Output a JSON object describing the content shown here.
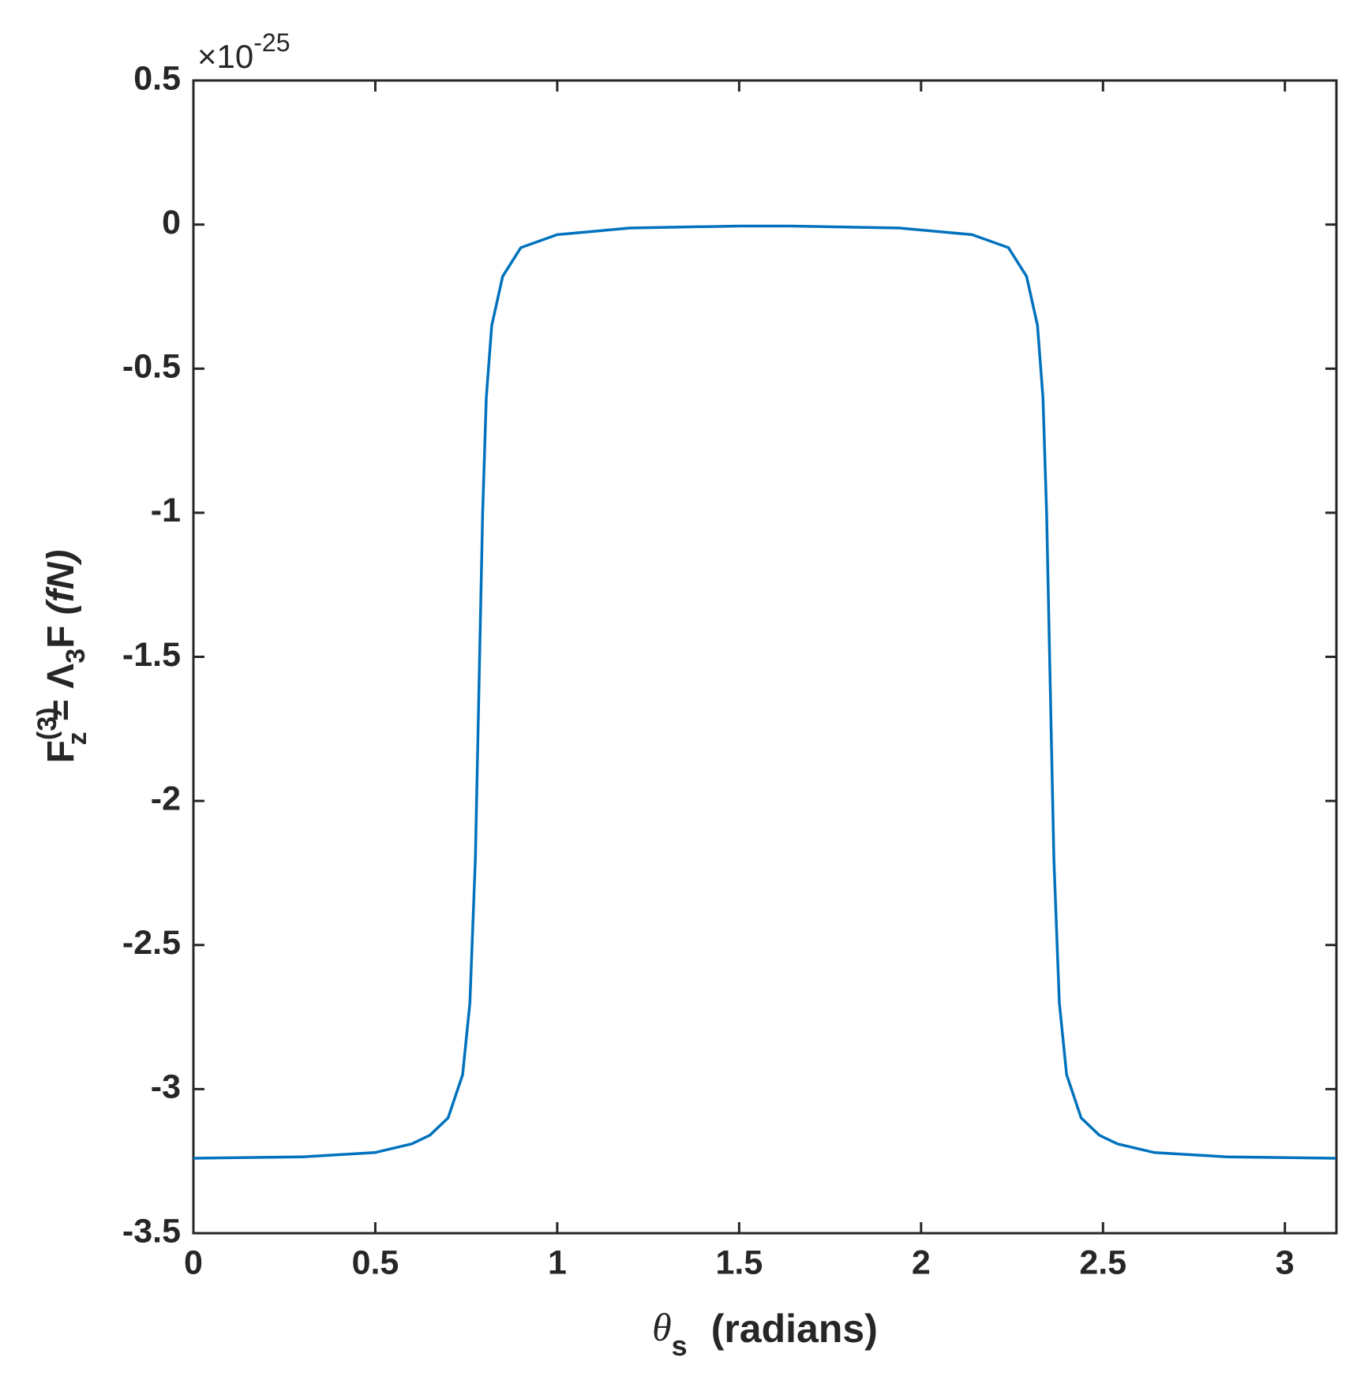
{
  "chart_data": {
    "type": "line",
    "x_label_parts": [
      "θ",
      "s",
      "(radians)"
    ],
    "y_label_parts": [
      "F",
      "(3)",
      "z",
      " = Λ",
      "3",
      "F ",
      "(fN)"
    ],
    "y_multiplier": "×10",
    "y_exponent": "-25",
    "x": [
      0,
      0.3,
      0.5,
      0.6,
      0.65,
      0.7,
      0.74,
      0.76,
      0.775,
      0.785,
      0.795,
      0.805,
      0.82,
      0.85,
      0.9,
      1.0,
      1.2,
      1.5,
      1.571,
      1.64,
      1.94,
      2.14,
      2.24,
      2.29,
      2.32,
      2.335,
      2.345,
      2.355,
      2.365,
      2.38,
      2.4,
      2.44,
      2.49,
      2.54,
      2.64,
      2.84,
      3.14
    ],
    "series": [
      {
        "color": "#0072bd",
        "values": [
          -3.24,
          -3.235,
          -3.22,
          -3.19,
          -3.16,
          -3.1,
          -2.95,
          -2.7,
          -2.2,
          -1.6,
          -1.0,
          -0.6,
          -0.35,
          -0.18,
          -0.08,
          -0.035,
          -0.012,
          -0.005,
          -0.005,
          -0.005,
          -0.012,
          -0.035,
          -0.08,
          -0.18,
          -0.35,
          -0.6,
          -1.0,
          -1.6,
          -2.2,
          -2.7,
          -2.95,
          -3.1,
          -3.16,
          -3.19,
          -3.22,
          -3.235,
          -3.24
        ]
      }
    ],
    "xlim": [
      0,
      3.14159
    ],
    "ylim": [
      -3.5,
      0.5
    ],
    "xticks": [
      0,
      0.5,
      1,
      1.5,
      2,
      2.5,
      3
    ],
    "yticks": [
      -3.5,
      -3,
      -2.5,
      -2,
      -1.5,
      -1,
      -0.5,
      0,
      0.5
    ]
  }
}
